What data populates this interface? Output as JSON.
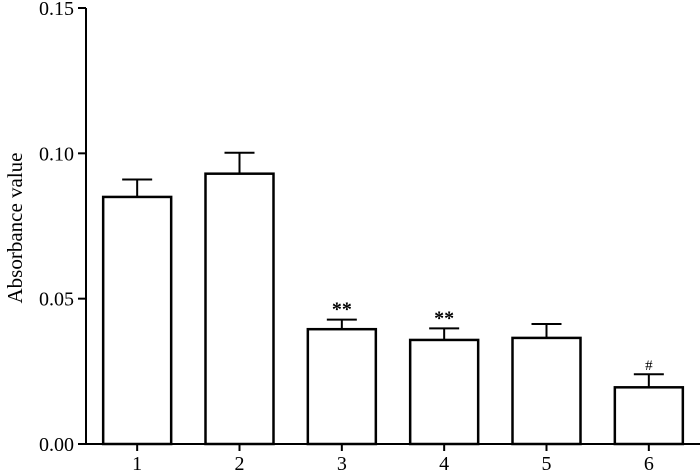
{
  "chart_data": {
    "type": "bar",
    "title": "",
    "xlabel": "",
    "ylabel": "Absorbance value",
    "ylim": [
      0,
      0.15
    ],
    "yticks": [
      "0.00",
      "0.05",
      "0.10",
      "0.15"
    ],
    "ytick_values": [
      0,
      0.05,
      0.1,
      0.15
    ],
    "categories": [
      "1",
      "2",
      "3",
      "4",
      "5",
      "6"
    ],
    "values": [
      0.085,
      0.093,
      0.0395,
      0.0358,
      0.0365,
      0.0195
    ],
    "errors": [
      0.006,
      0.0072,
      0.0033,
      0.004,
      0.0048,
      0.0045
    ],
    "annotations": [
      "",
      "",
      "**",
      "**",
      "",
      "#"
    ],
    "grid": false,
    "colors": {
      "bar_fill": "#ffffff",
      "bar_stroke": "#000000"
    }
  }
}
